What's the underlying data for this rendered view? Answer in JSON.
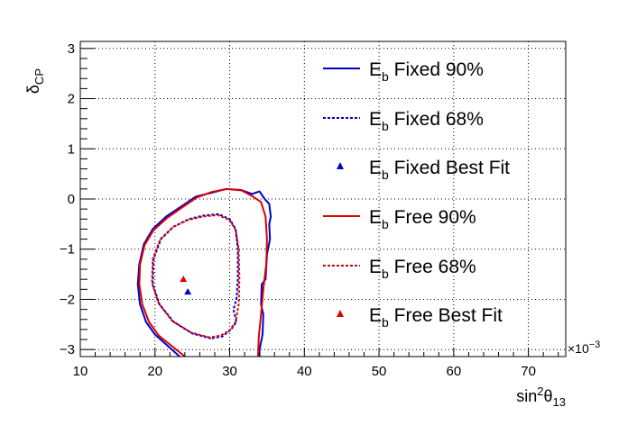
{
  "chart_data": {
    "type": "line",
    "xlabel": {
      "base": "sin",
      "sup": "2",
      "theta": "θ",
      "sub": "13"
    },
    "ylabel": {
      "base": "δ",
      "sub": "CP"
    },
    "x_multiplier": {
      "prefix": "×10",
      "exp": "−3"
    },
    "xlim": [
      10,
      75
    ],
    "ylim": [
      -3.14,
      3.14
    ],
    "x_ticks": [
      10,
      20,
      30,
      40,
      50,
      60,
      70
    ],
    "y_ticks": [
      -3,
      -2,
      -1,
      0,
      1,
      2,
      3
    ],
    "y_tick_labels": [
      "−3",
      "−2",
      "−1",
      "0",
      "1",
      "2",
      "3"
    ],
    "grid": true,
    "legend_position": "top-right",
    "colors": {
      "fixed": "#0000cc",
      "free": "#dd0000"
    },
    "series": [
      {
        "name": {
          "base": "E",
          "sub": "b",
          "rest": " Fixed 90%"
        },
        "style": "solid",
        "color": "#0000cc",
        "points": [
          [
            23.3,
            -3.14
          ],
          [
            21.5,
            -2.9
          ],
          [
            20.0,
            -2.7
          ],
          [
            18.8,
            -2.45
          ],
          [
            18.0,
            -2.1
          ],
          [
            17.7,
            -1.7
          ],
          [
            17.9,
            -1.3
          ],
          [
            18.5,
            -0.9
          ],
          [
            19.7,
            -0.6
          ],
          [
            21.5,
            -0.35
          ],
          [
            23.5,
            -0.15
          ],
          [
            25.5,
            0.05
          ],
          [
            27.5,
            0.12
          ],
          [
            29.5,
            0.2
          ],
          [
            31.5,
            0.18
          ],
          [
            33.0,
            0.1
          ],
          [
            34.0,
            0.15
          ],
          [
            34.7,
            0.0
          ],
          [
            35.3,
            -0.1
          ],
          [
            35.5,
            -0.35
          ],
          [
            35.3,
            -0.5
          ],
          [
            35.4,
            -0.8
          ],
          [
            35.0,
            -1.1
          ],
          [
            34.8,
            -1.6
          ],
          [
            34.3,
            -1.7
          ],
          [
            34.2,
            -2.1
          ],
          [
            34.5,
            -2.3
          ],
          [
            34.4,
            -2.7
          ],
          [
            34.0,
            -3.0
          ],
          [
            34.0,
            -3.14
          ]
        ]
      },
      {
        "name": {
          "base": "E",
          "sub": "b",
          "rest": " Fixed 68%"
        },
        "style": "dashed",
        "color": "#0000cc",
        "points": [
          [
            27.5,
            -2.78
          ],
          [
            25.0,
            -2.68
          ],
          [
            22.5,
            -2.45
          ],
          [
            20.6,
            -2.1
          ],
          [
            19.7,
            -1.7
          ],
          [
            19.8,
            -1.2
          ],
          [
            20.8,
            -0.8
          ],
          [
            22.5,
            -0.55
          ],
          [
            24.5,
            -0.4
          ],
          [
            26.5,
            -0.33
          ],
          [
            28.5,
            -0.3
          ],
          [
            30.0,
            -0.4
          ],
          [
            30.8,
            -0.6
          ],
          [
            31.1,
            -1.0
          ],
          [
            31.1,
            -1.6
          ],
          [
            30.9,
            -2.0
          ],
          [
            30.5,
            -2.2
          ],
          [
            30.9,
            -2.45
          ],
          [
            30.2,
            -2.6
          ],
          [
            29.0,
            -2.74
          ],
          [
            27.5,
            -2.78
          ]
        ]
      },
      {
        "name": {
          "base": "E",
          "sub": "b",
          "rest": " Fixed Best Fit"
        },
        "style": "marker",
        "color": "#0000cc",
        "points": [
          [
            24.4,
            -1.85
          ]
        ]
      },
      {
        "name": {
          "base": "E",
          "sub": "b",
          "rest": " Free 90%"
        },
        "style": "solid",
        "color": "#dd0000",
        "points": [
          [
            24.0,
            -3.14
          ],
          [
            22.0,
            -2.9
          ],
          [
            20.5,
            -2.72
          ],
          [
            19.2,
            -2.45
          ],
          [
            18.3,
            -2.1
          ],
          [
            17.9,
            -1.7
          ],
          [
            18.0,
            -1.3
          ],
          [
            18.6,
            -0.92
          ],
          [
            19.8,
            -0.62
          ],
          [
            21.6,
            -0.38
          ],
          [
            23.6,
            -0.17
          ],
          [
            25.6,
            0.03
          ],
          [
            27.6,
            0.14
          ],
          [
            29.6,
            0.2
          ],
          [
            31.6,
            0.17
          ],
          [
            33.0,
            0.06
          ],
          [
            34.2,
            -0.06
          ],
          [
            34.8,
            -0.35
          ],
          [
            35.0,
            -0.8
          ],
          [
            34.9,
            -1.3
          ],
          [
            34.5,
            -1.8
          ],
          [
            34.2,
            -2.3
          ],
          [
            33.9,
            -2.75
          ],
          [
            33.8,
            -3.14
          ]
        ]
      },
      {
        "name": {
          "base": "E",
          "sub": "b",
          "rest": " Free 68%"
        },
        "style": "dashed",
        "color": "#dd0000",
        "points": [
          [
            27.3,
            -2.76
          ],
          [
            24.8,
            -2.66
          ],
          [
            22.3,
            -2.43
          ],
          [
            20.5,
            -2.08
          ],
          [
            19.6,
            -1.68
          ],
          [
            19.7,
            -1.2
          ],
          [
            20.7,
            -0.8
          ],
          [
            22.4,
            -0.56
          ],
          [
            24.4,
            -0.42
          ],
          [
            26.4,
            -0.35
          ],
          [
            28.4,
            -0.32
          ],
          [
            30.0,
            -0.42
          ],
          [
            30.8,
            -0.62
          ],
          [
            31.2,
            -1.0
          ],
          [
            31.3,
            -1.6
          ],
          [
            31.2,
            -2.1
          ],
          [
            30.8,
            -2.45
          ],
          [
            30.0,
            -2.62
          ],
          [
            28.8,
            -2.72
          ],
          [
            27.3,
            -2.76
          ]
        ]
      },
      {
        "name": {
          "base": "E",
          "sub": "b",
          "rest": " Free Best Fit"
        },
        "style": "marker",
        "color": "#dd0000",
        "points": [
          [
            23.8,
            -1.6
          ]
        ]
      }
    ]
  }
}
